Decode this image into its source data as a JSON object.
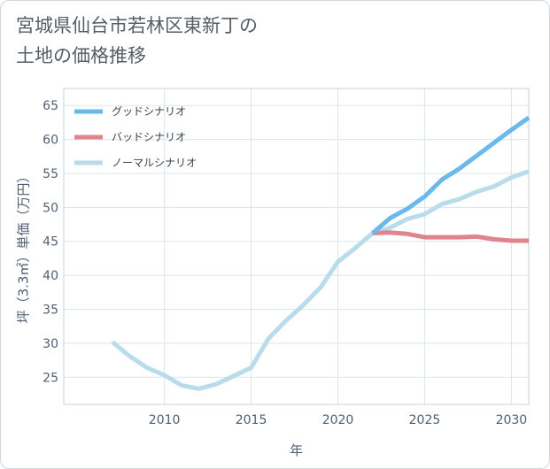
{
  "chart_data": {
    "type": "line",
    "title": [
      "宮城県仙台市若林区東新丁の",
      "土地の価格推移"
    ],
    "xlabel": "年",
    "ylabel": "坪（3.3㎡）単価（万円）",
    "xlim": [
      2004.2,
      2031.0
    ],
    "ylim": [
      21.0,
      67.5
    ],
    "xticks": [
      2010,
      2015,
      2020,
      2025,
      2030
    ],
    "yticks": [
      25,
      30,
      35,
      40,
      45,
      50,
      55,
      60,
      65
    ],
    "grid": true,
    "legend_position": "top-left",
    "series": [
      {
        "name": "グッドシナリオ",
        "color": "#6bb8ec",
        "x": [
          2022,
          2023,
          2024,
          2025,
          2026,
          2027,
          2028,
          2029,
          2030,
          2031
        ],
        "values": [
          46.2,
          48.4,
          49.8,
          51.6,
          54.1,
          55.7,
          57.6,
          59.5,
          61.4,
          63.2
        ]
      },
      {
        "name": "バッドシナリオ",
        "color": "#e0848e",
        "x": [
          2022,
          2023,
          2024,
          2025,
          2026,
          2027,
          2028,
          2029,
          2030,
          2031
        ],
        "values": [
          46.2,
          46.3,
          46.1,
          45.6,
          45.6,
          45.6,
          45.7,
          45.3,
          45.1,
          45.1
        ]
      },
      {
        "name": "ノーマルシナリオ",
        "color": "#b9dcea",
        "x": [
          2007,
          2008,
          2009,
          2010,
          2011,
          2012,
          2013,
          2014,
          2015,
          2016,
          2017,
          2018,
          2019,
          2020,
          2021,
          2022,
          2023,
          2024,
          2025,
          2026,
          2027,
          2028,
          2029,
          2030,
          2031
        ],
        "values": [
          30.2,
          28.1,
          26.4,
          25.3,
          23.8,
          23.3,
          24.0,
          25.2,
          26.4,
          30.7,
          33.3,
          35.6,
          38.2,
          42.0,
          44.0,
          46.2,
          47.0,
          48.3,
          49.0,
          50.5,
          51.2,
          52.3,
          53.1,
          54.4,
          55.3
        ]
      }
    ]
  }
}
